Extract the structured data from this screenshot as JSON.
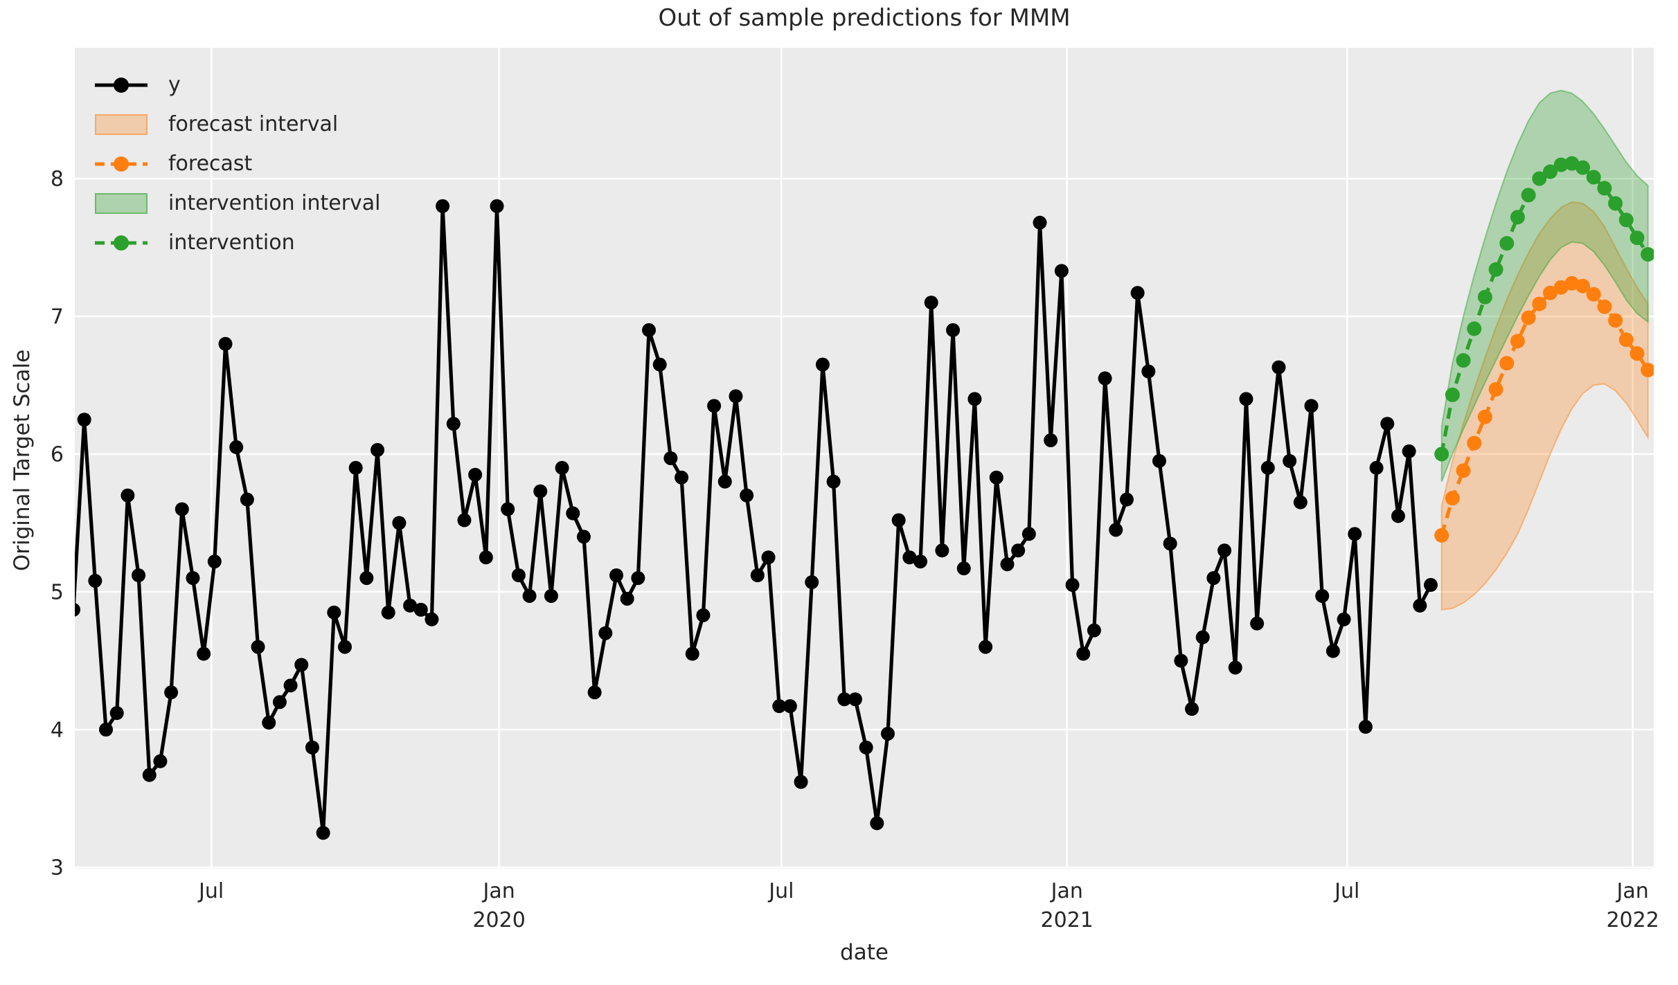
{
  "figure": {
    "title": "Out of sample predictions for MMM",
    "xlabel": "date",
    "ylabel": "Original Target Scale",
    "background_color": "#ffffff",
    "axes_background_color": "#ebebeb",
    "grid_color": "#ffffff",
    "text_color": "#262626"
  },
  "legend": {
    "items": [
      {
        "label": "y",
        "marker": "line-dot",
        "color": "#000000"
      },
      {
        "label": "forecast interval",
        "marker": "band",
        "color": "#ff7f0e"
      },
      {
        "label": "forecast",
        "marker": "dashed-dot",
        "color": "#ff7f0e"
      },
      {
        "label": "intervention interval",
        "marker": "band",
        "color": "#2ca02c"
      },
      {
        "label": "intervention",
        "marker": "dashed-dot",
        "color": "#2ca02c"
      }
    ]
  },
  "chart_data": {
    "type": "line",
    "title": "Out of sample predictions for MMM",
    "xlabel": "date",
    "ylabel": "Original Target Scale",
    "ylim": [
      2.99,
      8.95
    ],
    "yticks": [
      3,
      4,
      5,
      6,
      7,
      8
    ],
    "grid": true,
    "legend_position": "upper-left",
    "x_axis_note": "weekly data; week 0 = first observed point (Apr 2019)",
    "xticks": [
      {
        "label": "Jul",
        "year": "",
        "week": 12.7
      },
      {
        "label": "Jan",
        "year": "2020",
        "week": 39.2
      },
      {
        "label": "Jul",
        "year": "",
        "week": 65.2
      },
      {
        "label": "Jan",
        "year": "2021",
        "week": 91.5
      },
      {
        "label": "Jul",
        "year": "",
        "week": 117.3
      },
      {
        "label": "Jan",
        "year": "2022",
        "week": 143.6
      }
    ],
    "series": [
      {
        "name": "y",
        "color": "#000000",
        "style": "solid-dot",
        "start_week": 0,
        "values": [
          4.87,
          6.25,
          5.08,
          4.0,
          4.12,
          5.7,
          5.12,
          3.67,
          3.77,
          4.27,
          5.6,
          5.1,
          4.55,
          5.22,
          6.8,
          6.05,
          5.67,
          4.6,
          4.05,
          4.2,
          4.32,
          4.47,
          3.87,
          3.25,
          4.85,
          4.6,
          5.9,
          5.1,
          6.03,
          4.85,
          5.5,
          4.9,
          4.87,
          4.8,
          7.8,
          6.22,
          5.52,
          5.85,
          5.25,
          7.8,
          5.6,
          5.12,
          4.97,
          5.73,
          4.97,
          5.9,
          5.57,
          5.4,
          4.27,
          4.7,
          5.12,
          4.95,
          5.1,
          6.9,
          6.65,
          5.97,
          5.83,
          4.55,
          4.83,
          6.35,
          5.8,
          6.42,
          5.7,
          5.12,
          5.25,
          4.17,
          4.17,
          3.62,
          5.07,
          6.65,
          5.8,
          4.22,
          4.22,
          3.87,
          3.32,
          3.97,
          5.52,
          5.25,
          5.22,
          7.1,
          5.3,
          6.9,
          5.17,
          6.4,
          4.6,
          5.83,
          5.2,
          5.3,
          5.42,
          7.68,
          6.1,
          7.33,
          5.05,
          4.55,
          4.72,
          6.55,
          5.45,
          5.67,
          7.17,
          6.6,
          5.95,
          5.35,
          4.5,
          4.15,
          4.67,
          5.1,
          5.3,
          4.45,
          6.4,
          4.77,
          5.9,
          6.63,
          5.95,
          5.65,
          6.35,
          4.97,
          4.57,
          4.8,
          5.42,
          4.02,
          5.9,
          6.22,
          5.55,
          6.02,
          4.9,
          5.05
        ]
      },
      {
        "name": "forecast",
        "color": "#ff7f0e",
        "style": "dashed-dot",
        "start_week": 126,
        "values": [
          5.41,
          5.68,
          5.88,
          6.08,
          6.27,
          6.47,
          6.66,
          6.82,
          6.99,
          7.09,
          7.17,
          7.21,
          7.24,
          7.22,
          7.16,
          7.07,
          6.97,
          6.83,
          6.73,
          6.61
        ]
      },
      {
        "name": "intervention",
        "color": "#2ca02c",
        "style": "dashed-dot",
        "start_week": 126,
        "values": [
          6.0,
          6.43,
          6.68,
          6.91,
          7.14,
          7.34,
          7.53,
          7.72,
          7.88,
          8.0,
          8.05,
          8.1,
          8.11,
          8.08,
          8.01,
          7.93,
          7.82,
          7.7,
          7.57,
          7.45
        ]
      }
    ],
    "bands": [
      {
        "name": "forecast interval",
        "color": "#ff7f0e",
        "fill_opacity": 0.28,
        "start_week": 126,
        "lo": [
          4.87,
          4.88,
          4.92,
          4.98,
          5.06,
          5.16,
          5.28,
          5.42,
          5.6,
          5.8,
          6.0,
          6.18,
          6.33,
          6.44,
          6.5,
          6.51,
          6.46,
          6.37,
          6.25,
          6.12
        ],
        "hi": [
          5.62,
          5.95,
          6.22,
          6.47,
          6.7,
          6.92,
          7.12,
          7.3,
          7.46,
          7.6,
          7.71,
          7.79,
          7.83,
          7.82,
          7.76,
          7.65,
          7.5,
          7.35,
          7.21,
          7.09
        ]
      },
      {
        "name": "intervention interval",
        "color": "#2ca02c",
        "fill_opacity": 0.32,
        "start_week": 126,
        "lo": [
          5.8,
          6.0,
          6.18,
          6.35,
          6.52,
          6.68,
          6.84,
          7.0,
          7.15,
          7.29,
          7.41,
          7.5,
          7.54,
          7.53,
          7.47,
          7.37,
          7.25,
          7.12,
          7.02,
          6.96
        ],
        "hi": [
          6.2,
          6.66,
          7.0,
          7.3,
          7.57,
          7.82,
          8.05,
          8.25,
          8.42,
          8.55,
          8.62,
          8.64,
          8.62,
          8.56,
          8.47,
          8.36,
          8.24,
          8.12,
          8.02,
          7.95
        ]
      }
    ]
  }
}
